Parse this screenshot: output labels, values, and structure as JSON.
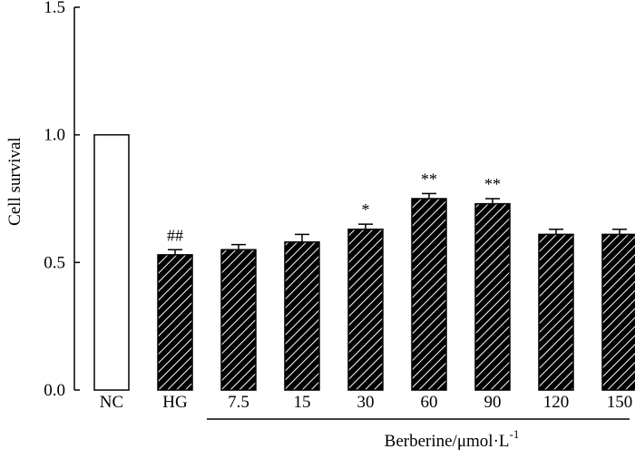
{
  "chart_data": {
    "type": "bar",
    "title": "",
    "ylabel": "Cell survival",
    "xlabel": "",
    "ylim": [
      0,
      1.5
    ],
    "yticks": [
      "0.0",
      "0.5",
      "1.0",
      "1.5"
    ],
    "ytick_values": [
      0,
      0.5,
      1.0,
      1.5
    ],
    "categories": [
      "NC",
      "HG",
      "7.5",
      "15",
      "30",
      "60",
      "90",
      "120",
      "150"
    ],
    "values": [
      1.0,
      0.53,
      0.55,
      0.58,
      0.63,
      0.75,
      0.73,
      0.61,
      0.61
    ],
    "errors": [
      0,
      0.02,
      0.02,
      0.03,
      0.02,
      0.02,
      0.02,
      0.02,
      0.02
    ],
    "fills": [
      "open",
      "hatched",
      "hatched",
      "hatched",
      "hatched",
      "hatched",
      "hatched",
      "hatched",
      "hatched"
    ],
    "annotations": [
      "",
      "##",
      "",
      "",
      "*",
      "**",
      "**",
      "",
      ""
    ],
    "group_label": {
      "text": "Berberine/μmol·L",
      "superscript": "-1",
      "from_category": 2,
      "to_category": 8
    },
    "grid": false,
    "legend": "none"
  },
  "colors": {
    "bar_edge": "#000000",
    "bar_fill_open": "#ffffff",
    "hatch": "#000000"
  }
}
